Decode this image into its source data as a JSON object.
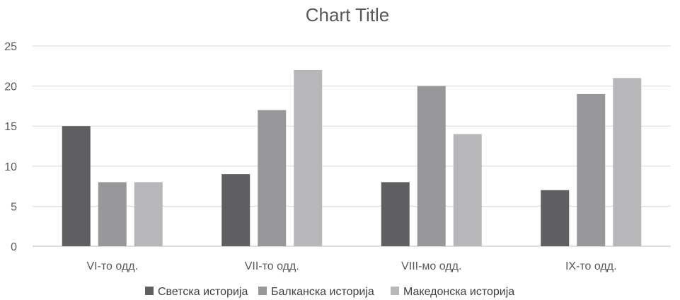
{
  "chart_data": {
    "type": "bar",
    "title": "Chart Title",
    "categories": [
      "VI-то одд.",
      "VII-то одд.",
      "VIII-мо одд.",
      "IX-то одд."
    ],
    "series": [
      {
        "name": "Светска историја",
        "values": [
          15,
          9,
          8,
          7
        ],
        "color": "#5f5f61"
      },
      {
        "name": "Балканска историја",
        "values": [
          8,
          17,
          20,
          19
        ],
        "color": "#98989a"
      },
      {
        "name": "Македонска историја",
        "values": [
          8,
          22,
          14,
          21
        ],
        "color": "#b7b7b9"
      }
    ],
    "ylim": [
      0,
      25
    ],
    "yticks": [
      0,
      5,
      10,
      15,
      20,
      25
    ],
    "grid": true,
    "legend": "bottom"
  }
}
